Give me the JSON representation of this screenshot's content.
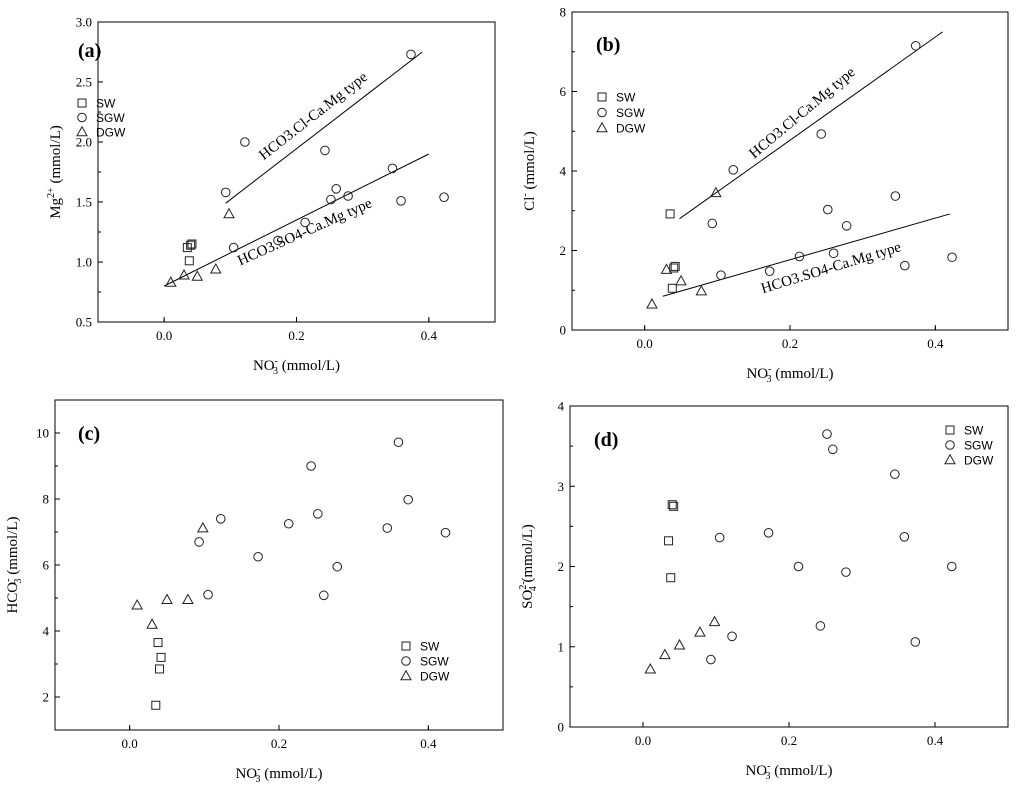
{
  "chart_data": [
    {
      "type": "scatter",
      "panel_label": "(a)",
      "xlabel": {
        "base": "NO",
        "sub": "3",
        "sup": "-",
        "unit": "(mmol/L)"
      },
      "ylabel": {
        "base": "Mg",
        "sub": "",
        "sup": "2+",
        "unit": "(mmol/L)"
      },
      "xlim": [
        -0.1,
        0.5
      ],
      "ylim": [
        0.5,
        3.0
      ],
      "xticks": [
        0.0,
        0.2,
        0.4
      ],
      "xtick_labels": [
        "0.0",
        "0.2",
        "0.4"
      ],
      "yticks": [
        0.5,
        1.0,
        1.5,
        2.0,
        2.5,
        3.0
      ],
      "ytick_labels": [
        "0.5",
        "1.0",
        "1.5",
        "2.0",
        "2.5",
        "3.0"
      ],
      "legend_position": "left",
      "series": [
        {
          "name": "SW",
          "marker": "square",
          "points": [
            [
              0.035,
              1.12
            ],
            [
              0.04,
              1.14
            ],
            [
              0.042,
              1.15
            ],
            [
              0.038,
              1.01
            ]
          ]
        },
        {
          "name": "SGW",
          "marker": "circle",
          "points": [
            [
              0.093,
              1.58
            ],
            [
              0.105,
              1.12
            ],
            [
              0.122,
              2.0
            ],
            [
              0.172,
              1.18
            ],
            [
              0.213,
              1.33
            ],
            [
              0.243,
              1.93
            ],
            [
              0.252,
              1.52
            ],
            [
              0.26,
              1.61
            ],
            [
              0.278,
              1.55
            ],
            [
              0.345,
              1.78
            ],
            [
              0.358,
              1.51
            ],
            [
              0.373,
              2.73
            ],
            [
              0.423,
              1.54
            ]
          ]
        },
        {
          "name": "DGW",
          "marker": "triangle",
          "points": [
            [
              0.01,
              0.83
            ],
            [
              0.03,
              0.89
            ],
            [
              0.05,
              0.88
            ],
            [
              0.078,
              0.94
            ],
            [
              0.098,
              1.4
            ]
          ]
        }
      ],
      "fit_lines": [
        {
          "label": "HCO3.Cl-Ca.Mg type",
          "x": [
            0.093,
            0.39
          ],
          "y": [
            1.49,
            2.75
          ]
        },
        {
          "label": "HCO3.SO4-Ca.Mg type",
          "x": [
            0.0,
            0.4
          ],
          "y": [
            0.8,
            1.9
          ]
        }
      ]
    },
    {
      "type": "scatter",
      "panel_label": "(b)",
      "xlabel": {
        "base": "NO",
        "sub": "3",
        "sup": "-",
        "unit": "(mmol/L)"
      },
      "ylabel": {
        "base": "Cl",
        "sub": "",
        "sup": "-",
        "unit": "(mmol/L)"
      },
      "xlim": [
        -0.1,
        0.5
      ],
      "ylim": [
        0,
        8
      ],
      "xticks": [
        0.0,
        0.2,
        0.4
      ],
      "xtick_labels": [
        "0.0",
        "0.2",
        "0.4"
      ],
      "yticks": [
        0,
        2,
        4,
        6,
        8
      ],
      "ytick_labels": [
        "0",
        "2",
        "4",
        "6",
        "8"
      ],
      "legend_position": "left",
      "series": [
        {
          "name": "SW",
          "marker": "square",
          "points": [
            [
              0.035,
              2.92
            ],
            [
              0.04,
              1.56
            ],
            [
              0.042,
              1.6
            ],
            [
              0.038,
              1.05
            ]
          ]
        },
        {
          "name": "SGW",
          "marker": "circle",
          "points": [
            [
              0.093,
              2.68
            ],
            [
              0.105,
              1.38
            ],
            [
              0.122,
              4.03
            ],
            [
              0.172,
              1.48
            ],
            [
              0.213,
              1.85
            ],
            [
              0.243,
              4.93
            ],
            [
              0.252,
              3.03
            ],
            [
              0.26,
              1.93
            ],
            [
              0.278,
              2.62
            ],
            [
              0.345,
              3.37
            ],
            [
              0.358,
              1.62
            ],
            [
              0.373,
              7.15
            ],
            [
              0.423,
              1.83
            ]
          ]
        },
        {
          "name": "DGW",
          "marker": "triangle",
          "points": [
            [
              0.01,
              0.65
            ],
            [
              0.03,
              1.52
            ],
            [
              0.05,
              1.23
            ],
            [
              0.078,
              0.98
            ],
            [
              0.098,
              3.45
            ]
          ]
        }
      ],
      "fit_lines": [
        {
          "label": "HCO3.Cl-Ca.Mg type",
          "x": [
            0.048,
            0.41
          ],
          "y": [
            2.8,
            7.5
          ]
        },
        {
          "label": "HCO3.SO4-Ca.Mg type",
          "x": [
            0.025,
            0.42
          ],
          "y": [
            0.85,
            2.92
          ]
        }
      ]
    },
    {
      "type": "scatter",
      "panel_label": "(c)",
      "xlabel": {
        "base": "NO",
        "sub": "3",
        "sup": "-",
        "unit": "(mmol/L)"
      },
      "ylabel": {
        "base": "HCO",
        "sub": "3",
        "sup": "-",
        "unit": "(mmol/L)"
      },
      "xlim": [
        -0.1,
        0.5
      ],
      "ylim": [
        1,
        11
      ],
      "xticks": [
        0.0,
        0.2,
        0.4
      ],
      "xtick_labels": [
        "0.0",
        "0.2",
        "0.4"
      ],
      "yticks": [
        2,
        4,
        6,
        8,
        10
      ],
      "ytick_labels": [
        "2",
        "4",
        "6",
        "8",
        "10"
      ],
      "legend_position": "bottom-right",
      "series": [
        {
          "name": "SW",
          "marker": "square",
          "points": [
            [
              0.035,
              1.75
            ],
            [
              0.038,
              3.65
            ],
            [
              0.042,
              3.2
            ],
            [
              0.04,
              2.85
            ]
          ]
        },
        {
          "name": "SGW",
          "marker": "circle",
          "points": [
            [
              0.093,
              6.7
            ],
            [
              0.105,
              5.1
            ],
            [
              0.122,
              7.4
            ],
            [
              0.172,
              6.25
            ],
            [
              0.213,
              7.25
            ],
            [
              0.243,
              9.0
            ],
            [
              0.252,
              7.55
            ],
            [
              0.26,
              5.08
            ],
            [
              0.278,
              5.95
            ],
            [
              0.345,
              7.12
            ],
            [
              0.36,
              9.72
            ],
            [
              0.373,
              7.98
            ],
            [
              0.423,
              6.98
            ]
          ]
        },
        {
          "name": "DGW",
          "marker": "triangle",
          "points": [
            [
              0.01,
              4.78
            ],
            [
              0.03,
              4.2
            ],
            [
              0.05,
              4.95
            ],
            [
              0.078,
              4.95
            ],
            [
              0.098,
              7.12
            ]
          ]
        }
      ],
      "fit_lines": []
    },
    {
      "type": "scatter",
      "panel_label": "(d)",
      "xlabel": {
        "base": "NO",
        "sub": "3",
        "sup": "-",
        "unit": "(mmol/L)"
      },
      "ylabel": {
        "base": "SO",
        "sub": "4",
        "sup": "2-",
        "unit": "(mmol/L)"
      },
      "xlim": [
        -0.1,
        0.5
      ],
      "ylim": [
        0,
        4
      ],
      "xticks": [
        0.0,
        0.2,
        0.4
      ],
      "xtick_labels": [
        "0.0",
        "0.2",
        "0.4"
      ],
      "yticks": [
        0,
        1,
        2,
        3,
        4
      ],
      "ytick_labels": [
        "0",
        "1",
        "2",
        "3",
        "4"
      ],
      "legend_position": "top-right",
      "series": [
        {
          "name": "SW",
          "marker": "square",
          "points": [
            [
              0.035,
              2.32
            ],
            [
              0.038,
              1.86
            ],
            [
              0.04,
              2.77
            ],
            [
              0.042,
              2.75
            ]
          ]
        },
        {
          "name": "SGW",
          "marker": "circle",
          "points": [
            [
              0.093,
              0.84
            ],
            [
              0.105,
              2.36
            ],
            [
              0.122,
              1.13
            ],
            [
              0.172,
              2.42
            ],
            [
              0.213,
              2.0
            ],
            [
              0.243,
              1.26
            ],
            [
              0.252,
              3.65
            ],
            [
              0.26,
              3.46
            ],
            [
              0.278,
              1.93
            ],
            [
              0.345,
              3.15
            ],
            [
              0.358,
              2.37
            ],
            [
              0.373,
              1.06
            ],
            [
              0.423,
              2.0
            ]
          ]
        },
        {
          "name": "DGW",
          "marker": "triangle",
          "points": [
            [
              0.01,
              0.72
            ],
            [
              0.03,
              0.9
            ],
            [
              0.05,
              1.02
            ],
            [
              0.078,
              1.18
            ],
            [
              0.098,
              1.31
            ]
          ]
        }
      ],
      "fit_lines": []
    }
  ]
}
